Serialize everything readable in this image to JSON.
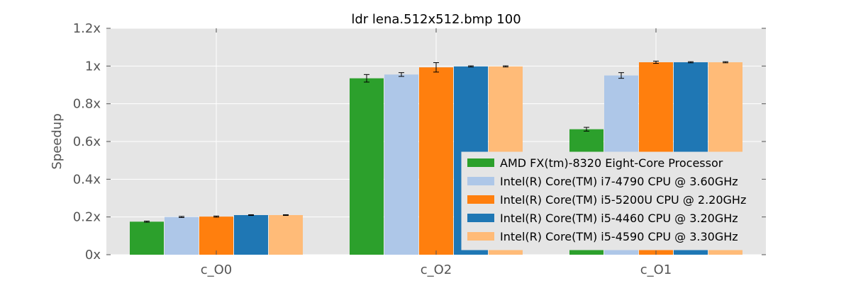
{
  "chart_data": {
    "type": "bar",
    "title": "ldr lena.512x512.bmp 100",
    "xlabel": "",
    "ylabel": "Speedup",
    "ylim": [
      0,
      1.2
    ],
    "yticks": [
      {
        "value": 0,
        "label": "0x"
      },
      {
        "value": 0.2,
        "label": "0.2x"
      },
      {
        "value": 0.4,
        "label": "0.4x"
      },
      {
        "value": 0.6,
        "label": "0.6x"
      },
      {
        "value": 0.8,
        "label": "0.8x"
      },
      {
        "value": 1.0,
        "label": "1x"
      },
      {
        "value": 1.2,
        "label": "1.2x"
      }
    ],
    "categories": [
      "c_O0",
      "c_O2",
      "c_O1"
    ],
    "grid": true,
    "legend_position": "lower-right",
    "series": [
      {
        "name": "AMD FX(tm)-8320 Eight-Core Processor",
        "color": "#2ca02c",
        "values": [
          0.175,
          0.935,
          0.665
        ],
        "errors": [
          0.003,
          0.02,
          0.01
        ]
      },
      {
        "name": "Intel(R) Core(TM) i7-4790 CPU @ 3.60GHz",
        "color": "#aec7e8",
        "values": [
          0.2,
          0.955,
          0.95
        ],
        "errors": [
          0.003,
          0.01,
          0.015
        ]
      },
      {
        "name": "Intel(R) Core(TM) i5-5200U CPU @ 2.20GHz",
        "color": "#ff7f0e",
        "values": [
          0.202,
          0.993,
          1.02
        ],
        "errors": [
          0.003,
          0.025,
          0.006
        ]
      },
      {
        "name": "Intel(R) Core(TM) i5-4460  CPU @ 3.20GHz",
        "color": "#1f77b4",
        "values": [
          0.21,
          0.998,
          1.02
        ],
        "errors": [
          0.002,
          0.003,
          0.003
        ]
      },
      {
        "name": "Intel(R) Core(TM) i5-4590 CPU @ 3.30GHz",
        "color": "#ffbb78",
        "values": [
          0.21,
          0.998,
          1.02
        ],
        "errors": [
          0.002,
          0.003,
          0.003
        ]
      }
    ]
  }
}
